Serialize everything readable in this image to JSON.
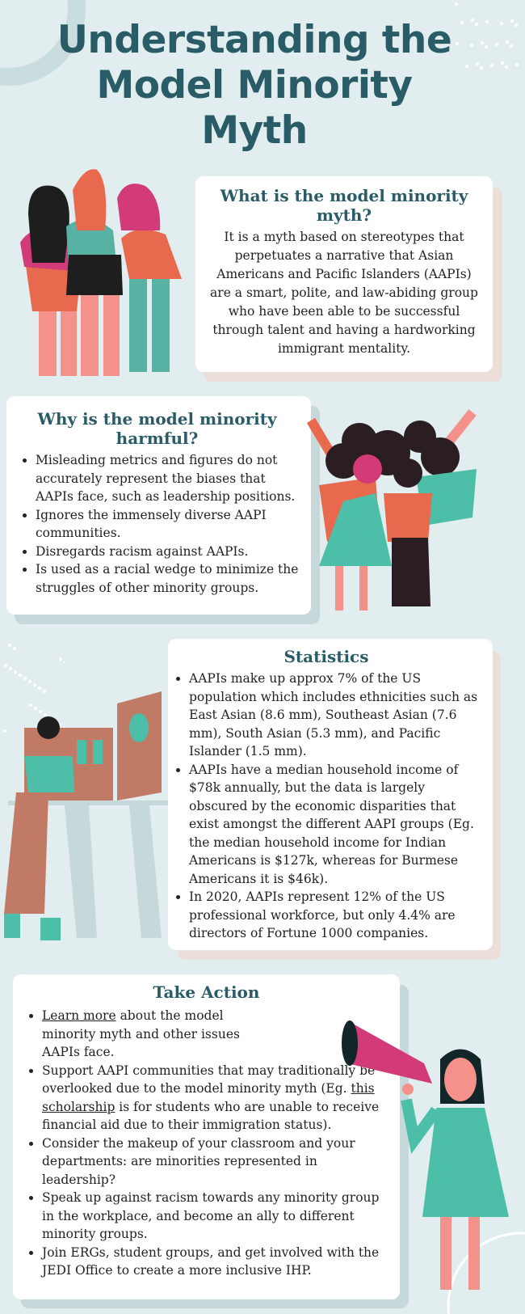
{
  "title": "Understanding the Model Minority Myth",
  "colors": {
    "background": "#e1edee",
    "heading": "#2a5c68",
    "card": "#ffffff",
    "shadow_beige": "#ecdfd9",
    "shadow_gray": "#c7d8da",
    "accent_pink": "#d23b78",
    "accent_teal": "#4dbfa8",
    "accent_orange": "#e8694d"
  },
  "what": {
    "heading": "What is the model minority myth?",
    "body": "It is a myth based on stereotypes that perpetuates a narrative that Asian Americans and Pacific Islanders (AAPIs) are a smart, polite, and law-abiding group who have been able to be successful through talent and having a hardworking immigrant mentality."
  },
  "why": {
    "heading": "Why is the model minority harmful?",
    "items": [
      "Misleading metrics and figures do not accurately represent the biases that AAPIs face, such as leadership positions.",
      "Ignores the immensely diverse AAPI communities.",
      "Disregards racism against AAPIs.",
      "Is used as a racial wedge to minimize the struggles of other minority groups."
    ]
  },
  "stats": {
    "heading": "Statistics",
    "items": [
      "AAPIs make up approx 7% of the US population which includes ethnicities such as East Asian (8.6 mm), Southeast Asian (7.6 mm), South Asian (5.3 mm), and Pacific Islander (1.5 mm).",
      "AAPIs have a median household income of $78k annually, but the data is largely obscured by the economic disparities that exist amongst the different AAPI groups (Eg. the median household income for Indian Americans is $127k, whereas for Burmese Americans it is $46k).",
      "In 2020, AAPIs represent 12% of the US professional workforce, but only 4.4% are directors of Fortune 1000 companies."
    ]
  },
  "action": {
    "heading": "Take Action",
    "item1_link": "Learn more",
    "item1_rest": " about the model minority myth and other issues AAPIs face.",
    "item2_pre": "Support AAPI communities that may traditionally be overlooked due to the model minority myth (Eg. ",
    "item2_link": "this scholarship",
    "item2_rest": " is for students who are unable to receive financial aid due to their immigration status).",
    "item3": "Consider the makeup of your classroom and your departments: are minorities represented in leadership?",
    "item4": "Speak up against racism towards any minority group in the workplace, and become an ally to different minority groups.",
    "item5": "Join ERGs, student groups, and get involved with the JEDI Office to create a more inclusive IHP."
  }
}
